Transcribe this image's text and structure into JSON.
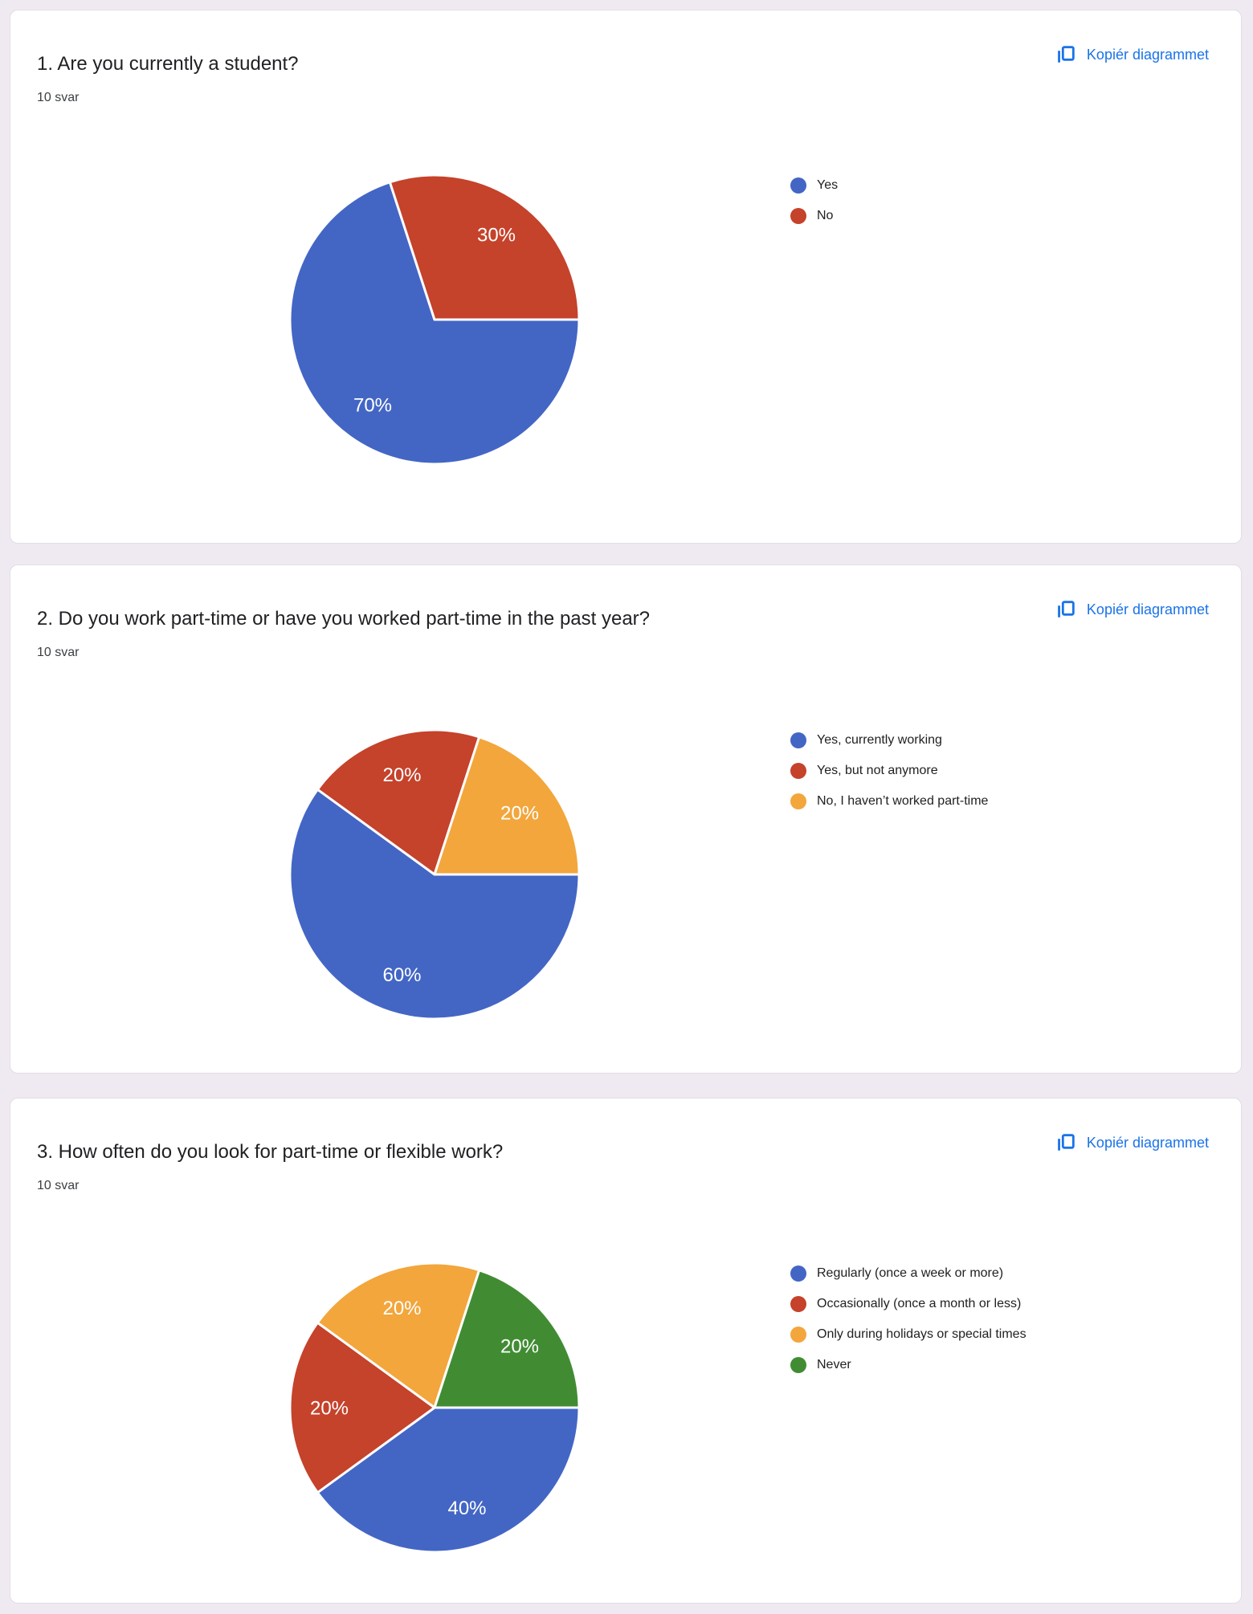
{
  "page": {
    "background_color": "#EFE9F1",
    "link_color": "#1A73E8"
  },
  "cards": [
    {
      "title": "1. Are you currently a student?",
      "responses": "10 svar",
      "copy_label": "Kopiér diagrammet"
    },
    {
      "title": "2. Do you work part-time or have you worked part-time in the past year?",
      "responses": "10 svar",
      "copy_label": "Kopiér diagrammet"
    },
    {
      "title": "3. How often do you look for part-time or flexible work?",
      "responses": "10 svar",
      "copy_label": "Kopiér diagrammet"
    }
  ],
  "chart_data": [
    {
      "type": "pie",
      "title": "1. Are you currently a student?",
      "responses_label": "10 svar",
      "labels": [
        "Yes",
        "No"
      ],
      "values": [
        70,
        30
      ],
      "value_labels": [
        "70%",
        "30%"
      ],
      "colors": [
        "#4366C5",
        "#C5422B"
      ],
      "start_angle_deg": 90,
      "direction": "clockwise",
      "legend_position": "right"
    },
    {
      "type": "pie",
      "title": "2. Do you work part-time or have you worked part-time in the past year?",
      "responses_label": "10 svar",
      "labels": [
        "Yes, currently working",
        "Yes, but not anymore",
        "No, I haven’t worked part-time"
      ],
      "values": [
        60,
        20,
        20
      ],
      "value_labels": [
        "60%",
        "20%",
        "20%"
      ],
      "colors": [
        "#4366C5",
        "#C5422B",
        "#F2A63C"
      ],
      "start_angle_deg": 90,
      "direction": "clockwise",
      "legend_position": "right"
    },
    {
      "type": "pie",
      "title": "3. How often do you look for part-time or flexible work?",
      "responses_label": "10 svar",
      "labels": [
        "Regularly (once a week or more)",
        "Occasionally (once a month or less)",
        "Only during holidays or special times",
        "Never"
      ],
      "values": [
        40,
        20,
        20,
        20
      ],
      "value_labels": [
        "40%",
        "20%",
        "20%",
        "20%"
      ],
      "colors": [
        "#4366C5",
        "#C5422B",
        "#F2A63C",
        "#418C33"
      ],
      "start_angle_deg": 90,
      "direction": "clockwise",
      "legend_position": "right"
    }
  ]
}
